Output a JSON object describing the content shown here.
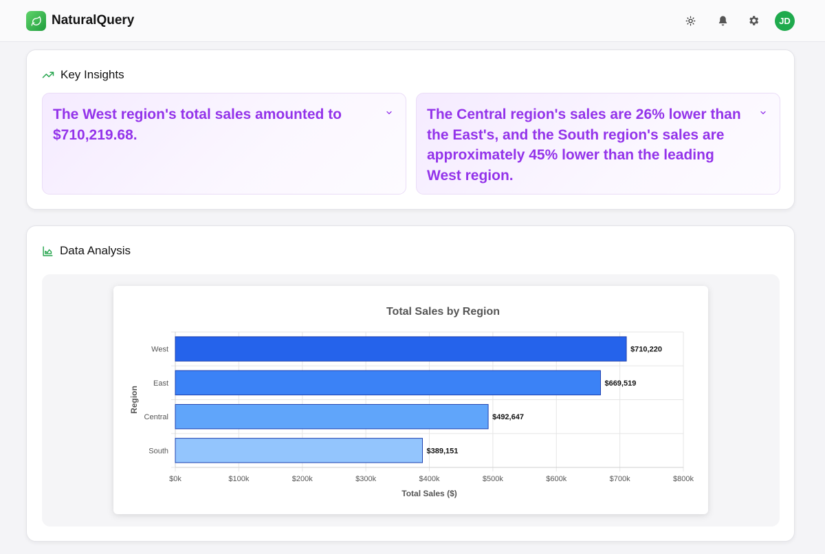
{
  "header": {
    "app_title": "NaturalQuery",
    "avatar_initials": "JD",
    "icons": [
      "sun-icon",
      "bell-icon",
      "gear-icon"
    ],
    "brand_color": "#22a34a"
  },
  "insights": {
    "title": "Key Insights",
    "icon": "trending-up-icon",
    "items": [
      {
        "text": "The West region's total sales amounted to $710,219.68."
      },
      {
        "text": "The Central region's sales are 26% lower than the East's, and the South region's sales are approximately 45% lower than the leading West region."
      }
    ],
    "text_color": "#9333ea"
  },
  "analysis": {
    "title": "Data Analysis",
    "icon": "area-chart-icon"
  },
  "chart_data": {
    "type": "bar",
    "orientation": "horizontal",
    "title": "Total Sales by Region",
    "xlabel": "Total Sales ($)",
    "ylabel": "Region",
    "categories": [
      "West",
      "East",
      "Central",
      "South"
    ],
    "values": [
      710220,
      669519,
      492647,
      389151
    ],
    "value_labels": [
      "$710,220",
      "$669,519",
      "$492,647",
      "$389,151"
    ],
    "xlim": [
      0,
      800000
    ],
    "xticks": [
      0,
      100000,
      200000,
      300000,
      400000,
      500000,
      600000,
      700000,
      800000
    ],
    "xtick_labels": [
      "$0k",
      "$100k",
      "$200k",
      "$300k",
      "$400k",
      "$500k",
      "$600k",
      "$700k",
      "$800k"
    ],
    "grid": true,
    "colors": [
      "#2563eb",
      "#3b82f6",
      "#60a5fa",
      "#93c5fd"
    ],
    "border_color": "#1e40af"
  }
}
